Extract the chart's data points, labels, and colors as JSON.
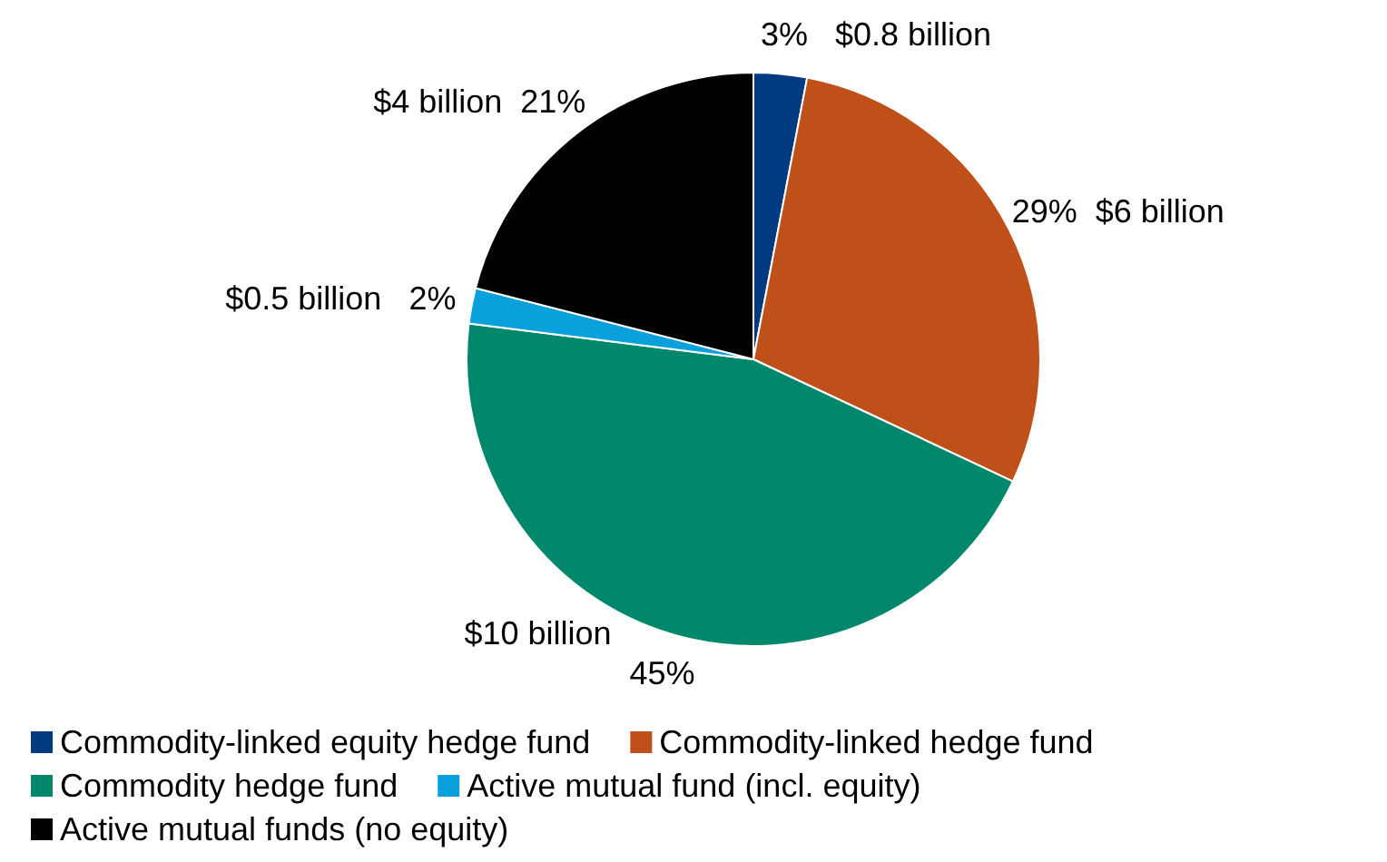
{
  "chart_data": {
    "type": "pie",
    "categories": [
      "Commodity-linked equity hedge fund",
      "Commodity-linked hedge fund",
      "Commodity hedge fund",
      "Active mutual fund (incl. equity)",
      "Active mutual funds (no equity)"
    ],
    "values": [
      3,
      29,
      45,
      2,
      21
    ],
    "colors": [
      "#003a80",
      "#c0501a",
      "#00876c",
      "#0aa0dc",
      "#000000"
    ],
    "value_labels": [
      "3%",
      "29%",
      "45%",
      "2%",
      "21%"
    ],
    "annotations": [
      {
        "text": "$0.8 billion",
        "x": "Commodity-linked equity hedge fund"
      },
      {
        "text": "$6 billion",
        "x": "Commodity-linked hedge fund"
      },
      {
        "text": "$10 billion",
        "x": "Commodity hedge fund"
      },
      {
        "text": "$0.5 billion",
        "x": "Active mutual fund (incl. equity)"
      },
      {
        "text": "$4 billion",
        "x": "Active mutual funds (no equity)"
      }
    ],
    "legend": "bottom"
  }
}
